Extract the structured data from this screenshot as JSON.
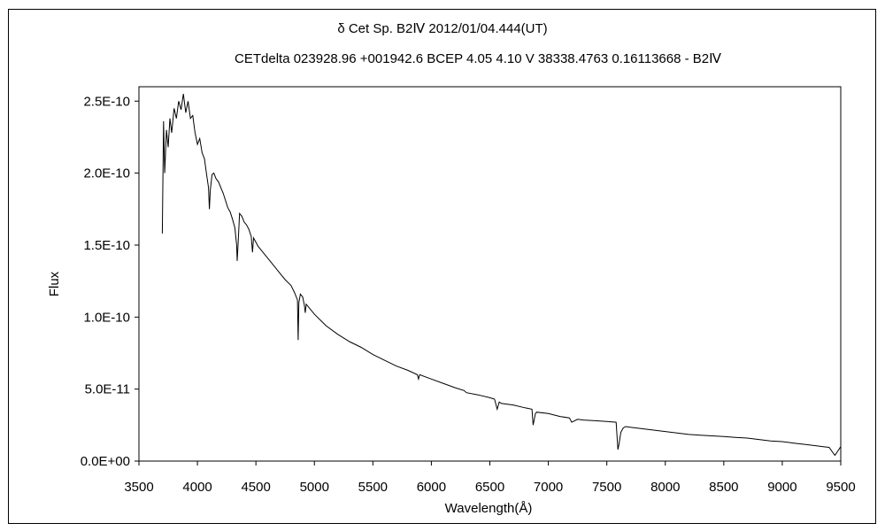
{
  "chart_data": {
    "type": "line",
    "title": "δ  Cet     Sp. B2Ⅳ     2012/01/04.444(UT)",
    "subtitle": "CETdelta 023928.96 +001942.6 BCEP 4.05 4.10 V 38338.4763 0.16113668 - B2Ⅳ",
    "xlabel": "Wavelength(Å)",
    "ylabel": "Flux",
    "xlim": [
      3500,
      9500
    ],
    "ylim": [
      0,
      2.6e-10
    ],
    "x_ticks": [
      3500,
      4000,
      4500,
      5000,
      5500,
      6000,
      6500,
      7000,
      7500,
      8000,
      8500,
      9000,
      9500
    ],
    "x_tick_labels": [
      "3500",
      "4000",
      "4500",
      "5000",
      "5500",
      "6000",
      "6500",
      "7000",
      "7500",
      "8000",
      "8500",
      "9000",
      "9500"
    ],
    "y_ticks": [
      0,
      5e-11,
      1e-10,
      1.5e-10,
      2e-10,
      2.5e-10
    ],
    "y_tick_labels": [
      "0.0E+00",
      "5.0E-11",
      "1.0E-10",
      "1.5E-10",
      "2.0E-10",
      "2.5E-10"
    ],
    "grid": false,
    "line_color": "#000000",
    "series": [
      {
        "x": [
          3700,
          3710,
          3720,
          3735,
          3750,
          3765,
          3780,
          3800,
          3820,
          3840,
          3860,
          3880,
          3900,
          3920,
          3940,
          3960,
          3980,
          4000,
          4020,
          4040,
          4060,
          4080,
          4095,
          4102,
          4110,
          4125,
          4140,
          4160,
          4180,
          4200,
          4220,
          4240,
          4260,
          4280,
          4300,
          4320,
          4335,
          4340,
          4346,
          4360,
          4380,
          4400,
          4420,
          4440,
          4460,
          4471,
          4480,
          4500,
          4520,
          4540,
          4560,
          4600,
          4650,
          4700,
          4750,
          4800,
          4830,
          4855,
          4861,
          4867,
          4880,
          4900,
          4915,
          4922,
          4930,
          4950,
          5000,
          5050,
          5100,
          5200,
          5300,
          5400,
          5500,
          5600,
          5700,
          5800,
          5880,
          5890,
          5900,
          6000,
          6100,
          6200,
          6280,
          6300,
          6400,
          6500,
          6540,
          6563,
          6580,
          6600,
          6700,
          6800,
          6860,
          6870,
          6890,
          6900,
          7000,
          7100,
          7180,
          7200,
          7250,
          7300,
          7400,
          7500,
          7580,
          7595,
          7605,
          7620,
          7640,
          7660,
          7700,
          7800,
          7900,
          8000,
          8100,
          8200,
          8300,
          8400,
          8500,
          8600,
          8700,
          8800,
          8900,
          9000,
          9100,
          9200,
          9300,
          9350,
          9400,
          9450,
          9500
        ],
        "y": [
          1.58e-10,
          2.36e-10,
          2e-10,
          2.3e-10,
          2.18e-10,
          2.38e-10,
          2.28e-10,
          2.45e-10,
          2.38e-10,
          2.5e-10,
          2.44e-10,
          2.55e-10,
          2.42e-10,
          2.5e-10,
          2.38e-10,
          2.4e-10,
          2.28e-10,
          2.2e-10,
          2.24e-10,
          2.14e-10,
          2.1e-10,
          1.98e-10,
          1.9e-10,
          1.75e-10,
          1.88e-10,
          1.99e-10,
          2e-10,
          1.96e-10,
          1.94e-10,
          1.9e-10,
          1.86e-10,
          1.81e-10,
          1.76e-10,
          1.73e-10,
          1.68e-10,
          1.62e-10,
          1.5e-10,
          1.39e-10,
          1.48e-10,
          1.72e-10,
          1.7e-10,
          1.66e-10,
          1.64e-10,
          1.61e-10,
          1.56e-10,
          1.45e-10,
          1.55e-10,
          1.52e-10,
          1.49e-10,
          1.47e-10,
          1.45e-10,
          1.41e-10,
          1.36e-10,
          1.31e-10,
          1.26e-10,
          1.22e-10,
          1.17e-10,
          1.12e-10,
          8.4e-11,
          1.1e-10,
          1.16e-10,
          1.14e-10,
          1.08e-10,
          1.03e-10,
          1.09e-10,
          1.07e-10,
          1.02e-10,
          9.8e-11,
          9.4e-11,
          8.8e-11,
          8.3e-11,
          7.9e-11,
          7.4e-11,
          7e-11,
          6.6e-11,
          6.3e-11,
          6e-11,
          5.7e-11,
          6e-11,
          5.7e-11,
          5.4e-11,
          5.1e-11,
          4.9e-11,
          4.75e-11,
          4.6e-11,
          4.4e-11,
          4.3e-11,
          3.6e-11,
          4.1e-11,
          4e-11,
          3.9e-11,
          3.7e-11,
          3.6e-11,
          2.5e-11,
          3.3e-11,
          3.4e-11,
          3.3e-11,
          3.1e-11,
          3e-11,
          2.7e-11,
          2.9e-11,
          2.85e-11,
          2.8e-11,
          2.75e-11,
          2.7e-11,
          8e-12,
          1.2e-11,
          2e-11,
          2.3e-11,
          2.4e-11,
          2.35e-11,
          2.25e-11,
          2.15e-11,
          2.05e-11,
          1.95e-11,
          1.85e-11,
          1.8e-11,
          1.75e-11,
          1.7e-11,
          1.65e-11,
          1.6e-11,
          1.5e-11,
          1.4e-11,
          1.35e-11,
          1.25e-11,
          1.15e-11,
          1.05e-11,
          1e-11,
          9.5e-12,
          4e-12,
          1e-11
        ]
      }
    ]
  }
}
